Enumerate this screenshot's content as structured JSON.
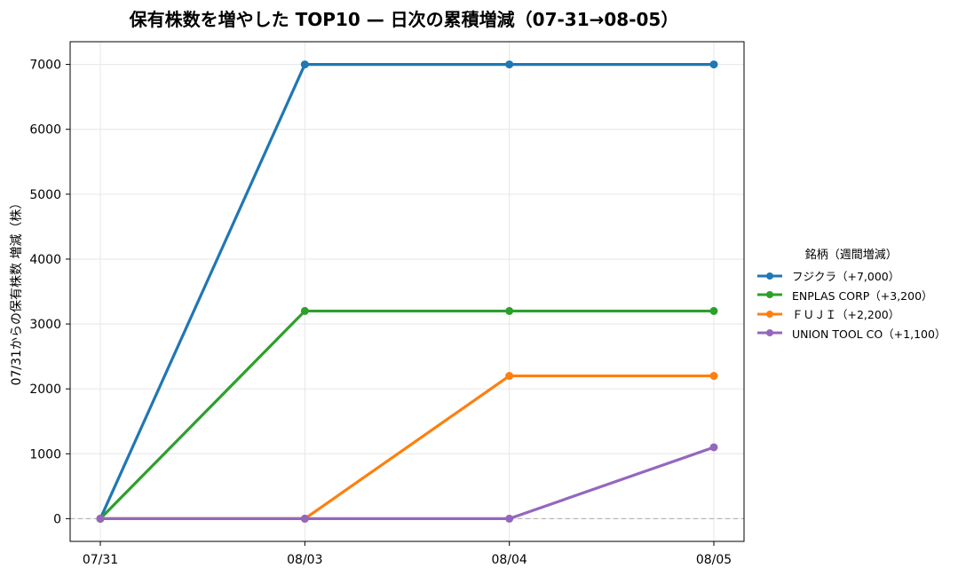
{
  "chart_data": {
    "type": "line",
    "title": "保有株数を増やした TOP10 — 日次の累積増減（07-31→08-05）",
    "xlabel": "",
    "ylabel": "07/31からの保有株数 増減（株）",
    "categories": [
      "07/31",
      "08/03",
      "08/04",
      "08/05"
    ],
    "yticks": [
      0,
      1000,
      2000,
      3000,
      4000,
      5000,
      6000,
      7000
    ],
    "ylim": [
      -350,
      7350
    ],
    "grid": true,
    "zero_line": true,
    "legend_title": "銘柄（週間増減）",
    "legend_position": "right",
    "series": [
      {
        "name": "フジクラ（+7,000）",
        "color": "#1f77b4",
        "values": [
          0,
          7000,
          7000,
          7000
        ]
      },
      {
        "name": "ENPLAS CORP（+3,200）",
        "color": "#2ca02c",
        "values": [
          0,
          3200,
          3200,
          3200
        ]
      },
      {
        "name": "ＦＵＪＩ（+2,200）",
        "color": "#ff7f0e",
        "values": [
          0,
          0,
          2200,
          2200
        ]
      },
      {
        "name": "UNION TOOL CO（+1,100）",
        "color": "#9467bd",
        "values": [
          0,
          0,
          0,
          1100
        ]
      }
    ]
  }
}
